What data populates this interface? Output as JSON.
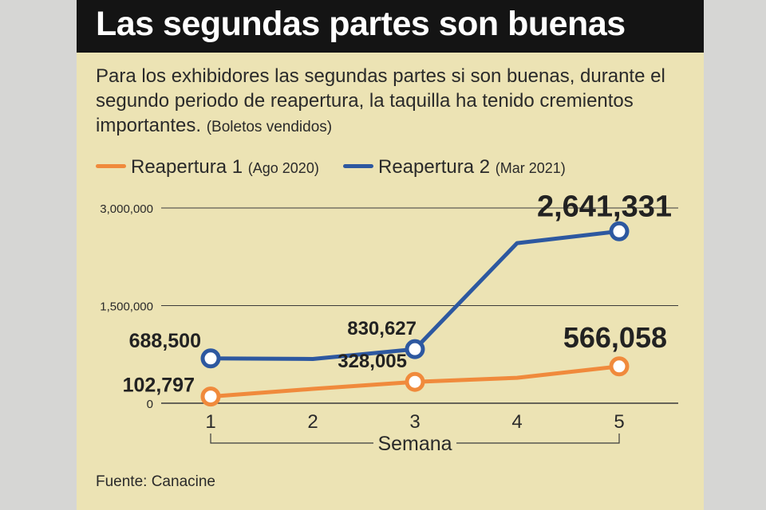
{
  "title": "Las segundas partes son buenas",
  "subtitle": "Para los exhibidores las segundas partes si son buenas, durante el segundo periodo de reapertura, la taquilla ha tenido cremientos importantes.",
  "subtitle_note": "(Boletos vendidos)",
  "source": "Fuente: Canacine",
  "colors": {
    "series1": "#f08a3c",
    "series2": "#2d58a0",
    "background": "#ece3b4",
    "title_bg": "#141414"
  },
  "chart_data": {
    "type": "line",
    "title": "Las segundas partes son buenas",
    "xlabel": "Semana",
    "ylabel": "Boletos vendidos",
    "x": [
      1,
      2,
      3,
      4,
      5
    ],
    "y_ticks": [
      "3,000,000",
      "1,500,000",
      "0"
    ],
    "y_tick_values": [
      3000000,
      1500000,
      0
    ],
    "ylim": [
      0,
      3000000
    ],
    "series": [
      {
        "name": "Reapertura 1",
        "sub": "(Ago 2020)",
        "color": "#f08a3c",
        "values": [
          102797,
          220000,
          328005,
          390000,
          566058
        ],
        "marked": [
          0,
          2,
          4
        ],
        "labels": [
          "102,797",
          null,
          "328,005",
          null,
          "566,058"
        ]
      },
      {
        "name": "Reapertura 2",
        "sub": "(Mar 2021)",
        "color": "#2d58a0",
        "values": [
          688500,
          680000,
          830627,
          2460000,
          2641331
        ],
        "marked": [
          0,
          2,
          4
        ],
        "labels": [
          "688,500",
          null,
          "830,627",
          null,
          "2,641,331"
        ]
      }
    ]
  }
}
